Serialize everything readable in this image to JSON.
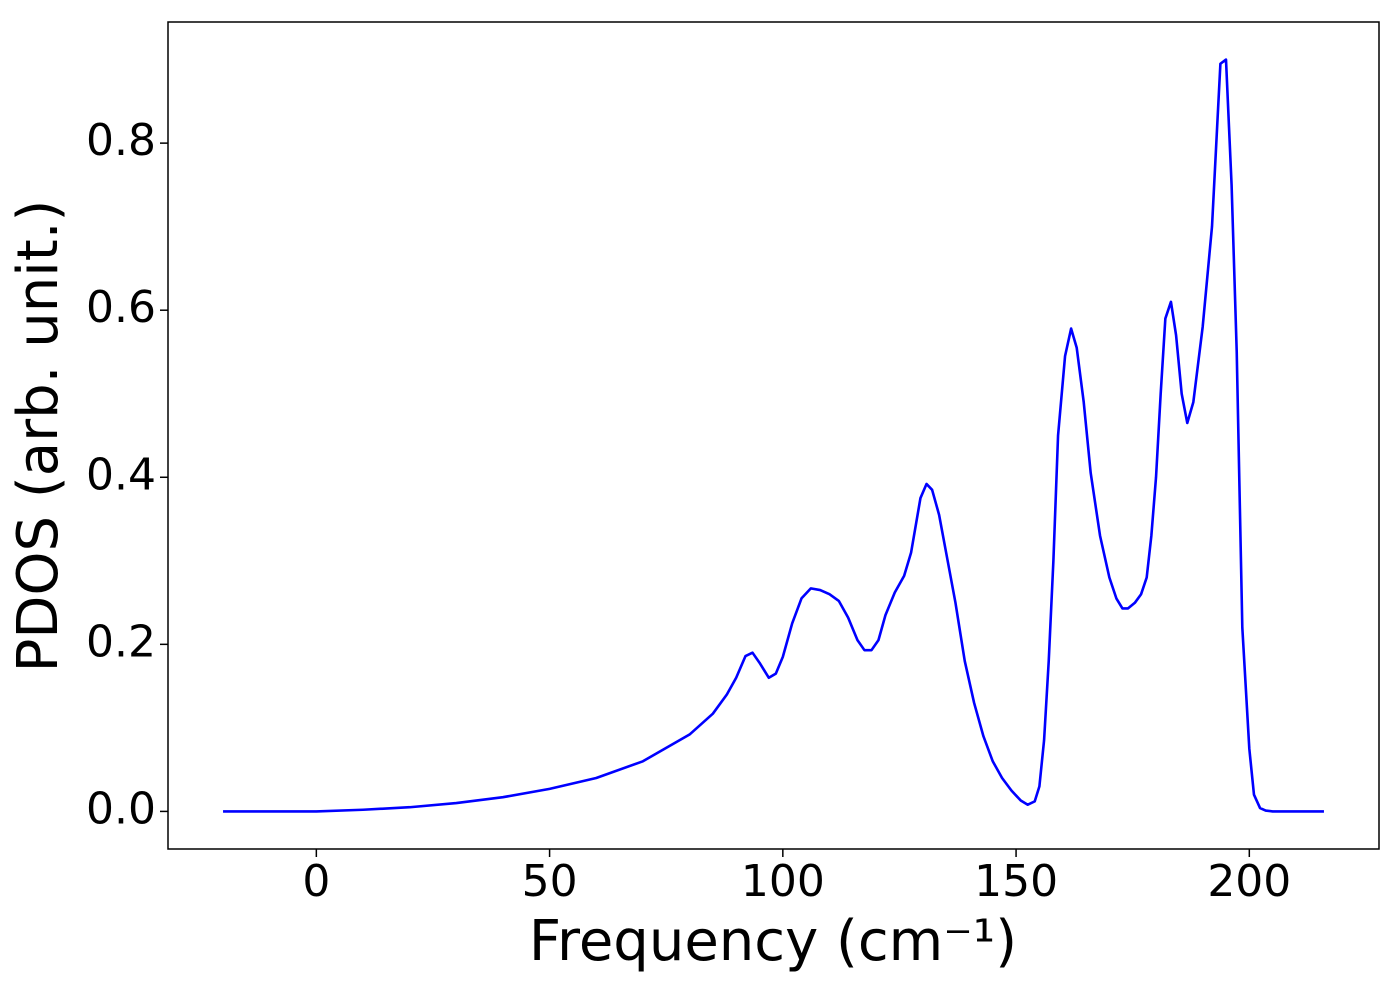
{
  "chart_data": {
    "type": "line",
    "xlabel": "Frequency (cm⁻¹)",
    "ylabel": "PDOS (arb. unit.)",
    "x": [
      -20,
      -10,
      0,
      10,
      20,
      30,
      40,
      50,
      60,
      70,
      80,
      85,
      88,
      90,
      92,
      93.5,
      95,
      97,
      98.5,
      100,
      102,
      104,
      106,
      108,
      110,
      112,
      114,
      116,
      117.5,
      119,
      120.5,
      122,
      124,
      126,
      127.5,
      129.5,
      130.8,
      132,
      133.5,
      135,
      137,
      139,
      141,
      143,
      145,
      147,
      149,
      151,
      152.5,
      154,
      155,
      156,
      157,
      158,
      159,
      160.5,
      161.8,
      163,
      164.5,
      166,
      168,
      170,
      171.5,
      172.8,
      174,
      175.5,
      176.8,
      178,
      179,
      180,
      181,
      182,
      183.2,
      184.3,
      185.5,
      186.7,
      188,
      190,
      192,
      193.8,
      195,
      196.2,
      197.3,
      198.5,
      200,
      201,
      202.3,
      203.5,
      205,
      216
    ],
    "series": [
      {
        "name": "PDOS",
        "color": "#0000ff",
        "values": [
          0,
          0,
          0,
          0.002,
          0.005,
          0.01,
          0.017,
          0.027,
          0.04,
          0.06,
          0.092,
          0.117,
          0.14,
          0.16,
          0.186,
          0.19,
          0.178,
          0.16,
          0.165,
          0.185,
          0.225,
          0.255,
          0.267,
          0.265,
          0.26,
          0.252,
          0.232,
          0.205,
          0.193,
          0.193,
          0.205,
          0.235,
          0.262,
          0.282,
          0.31,
          0.375,
          0.392,
          0.385,
          0.355,
          0.31,
          0.25,
          0.18,
          0.13,
          0.09,
          0.06,
          0.04,
          0.025,
          0.013,
          0.008,
          0.012,
          0.03,
          0.085,
          0.18,
          0.3,
          0.45,
          0.545,
          0.578,
          0.555,
          0.49,
          0.405,
          0.33,
          0.28,
          0.255,
          0.243,
          0.243,
          0.25,
          0.26,
          0.28,
          0.33,
          0.4,
          0.5,
          0.59,
          0.61,
          0.57,
          0.5,
          0.465,
          0.49,
          0.58,
          0.7,
          0.895,
          0.9,
          0.75,
          0.55,
          0.22,
          0.075,
          0.02,
          0.004,
          0.001,
          0,
          0
        ]
      }
    ],
    "xlim": [
      -31.8,
      227.8
    ],
    "ylim": [
      -0.045,
      0.945
    ],
    "xticks": [
      0,
      50,
      100,
      150,
      200
    ],
    "yticks": [
      {
        "value": 0,
        "label": "0.0"
      },
      0.2,
      0.4,
      0.6,
      0.8
    ]
  }
}
